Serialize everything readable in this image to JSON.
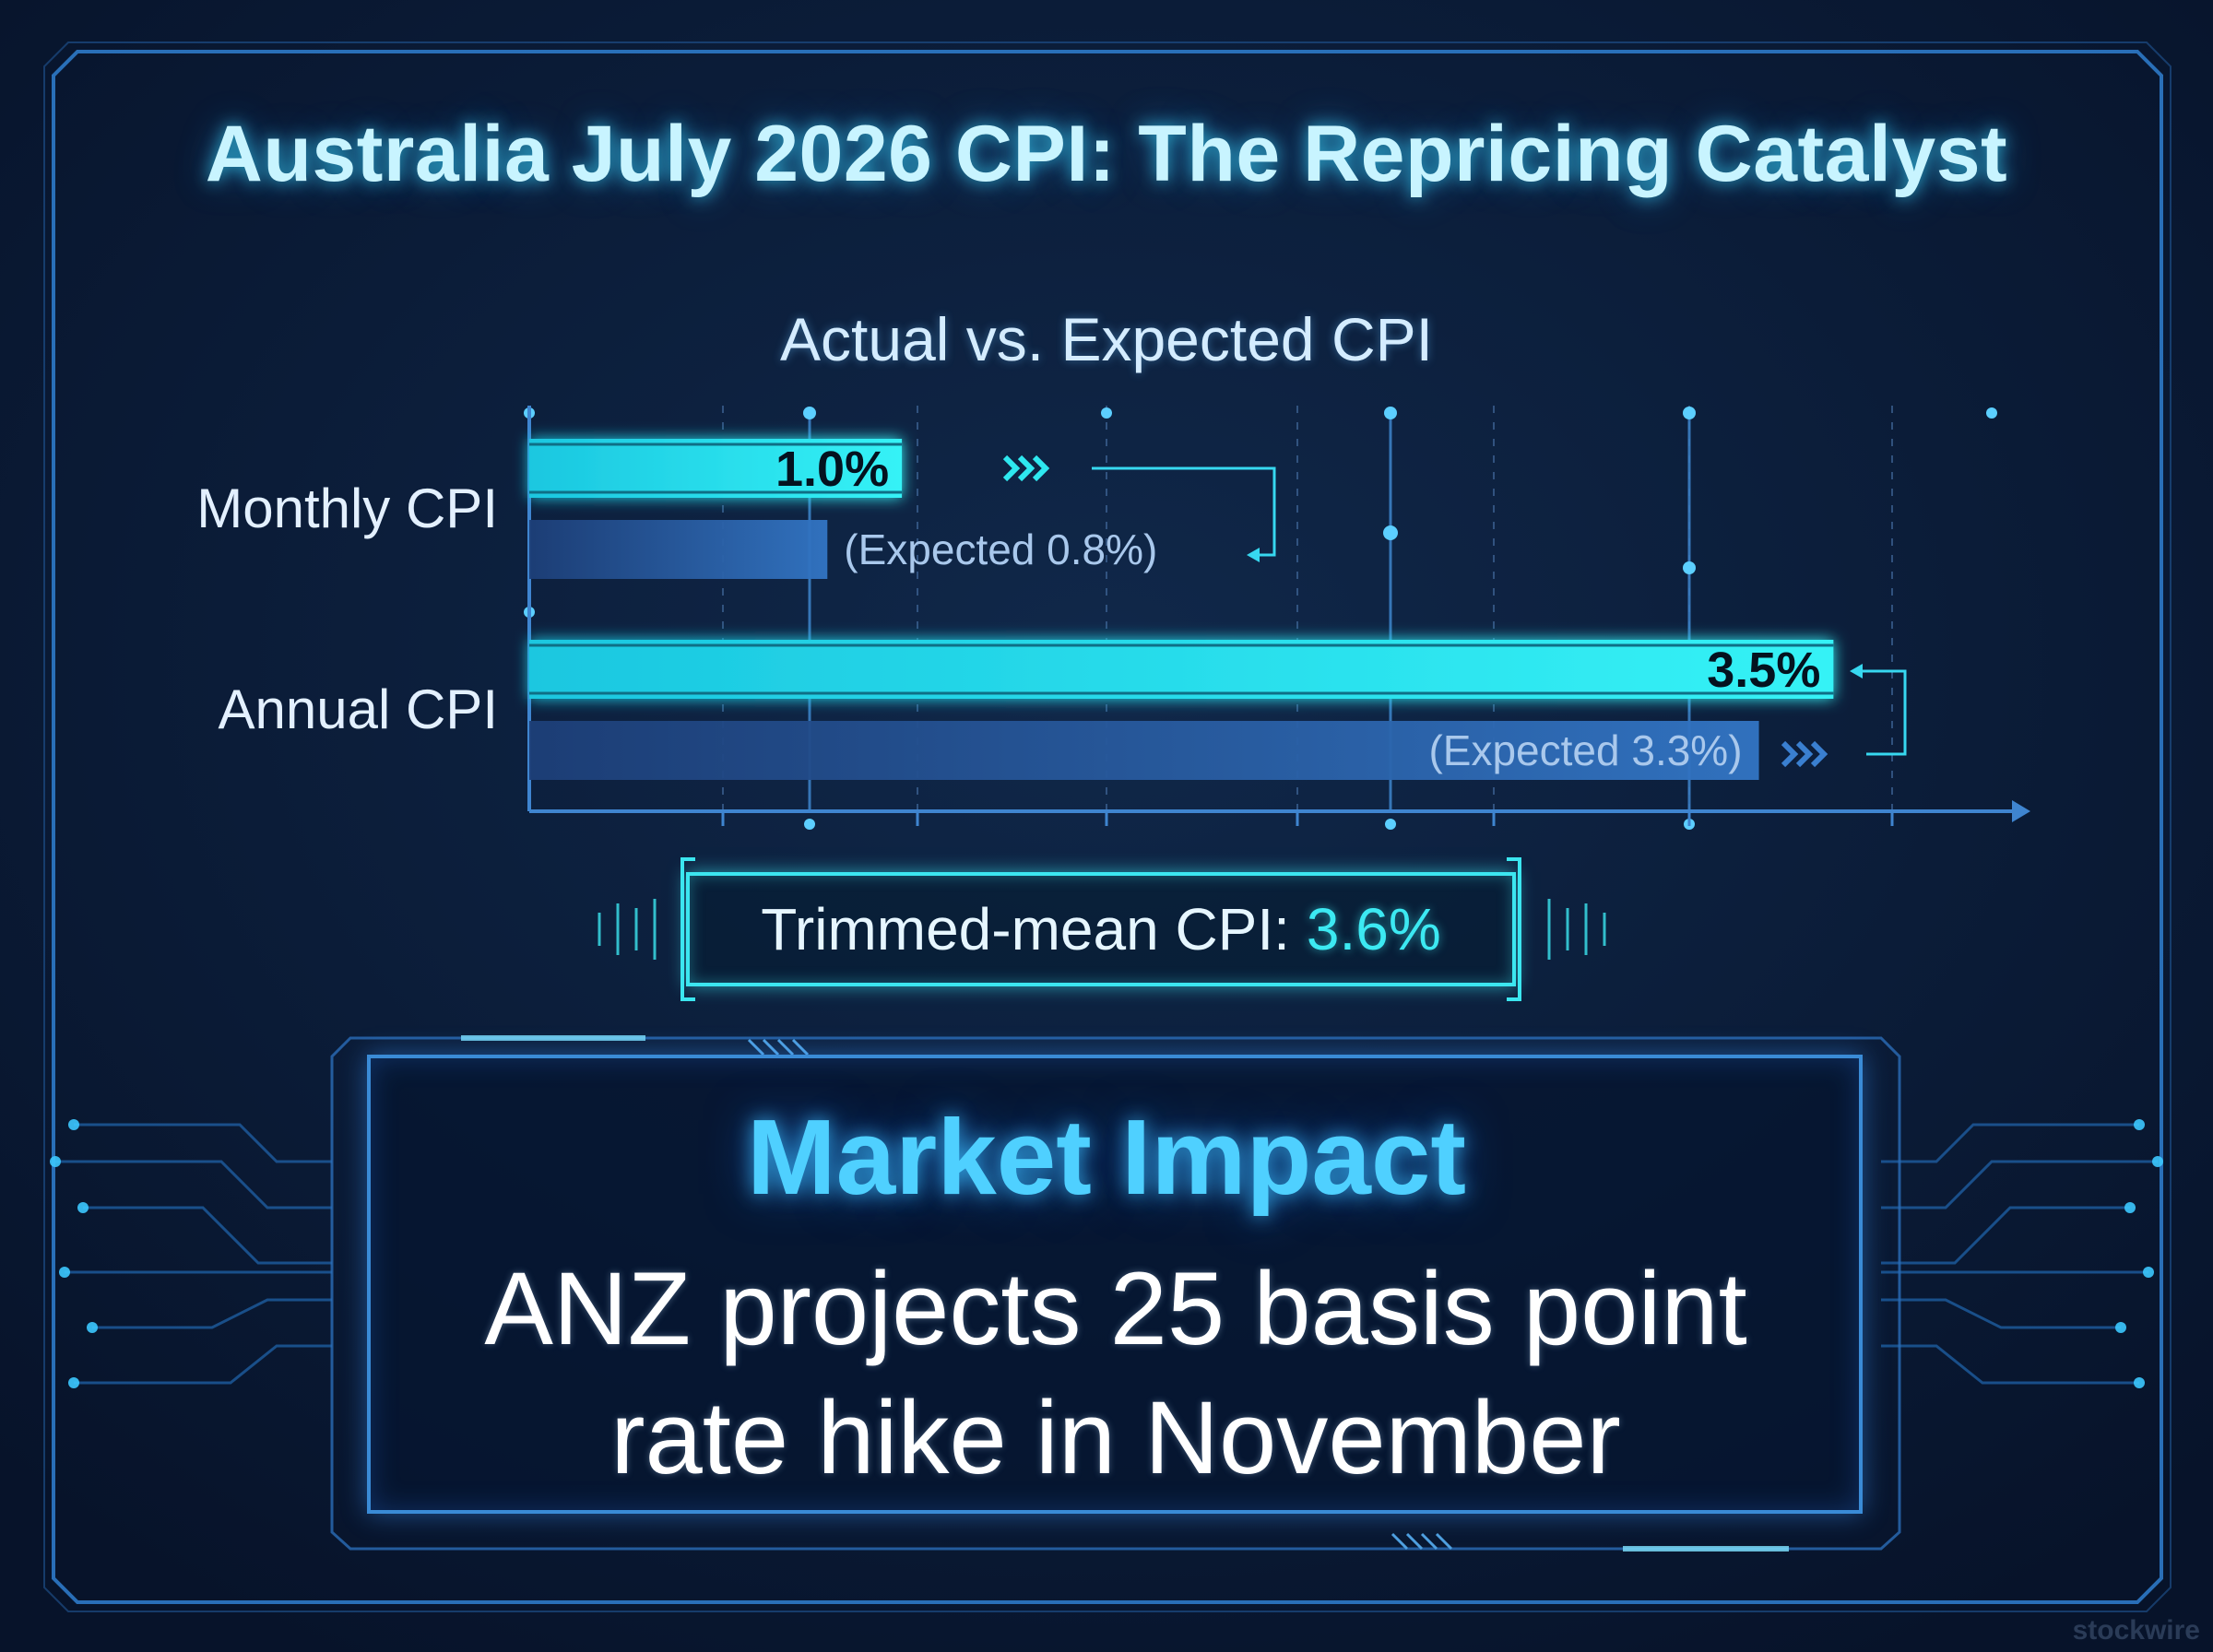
{
  "header": {
    "title": "Australia July 2026 CPI: The Repricing Catalyst"
  },
  "chart_data": {
    "type": "bar",
    "orientation": "horizontal",
    "title": "Actual vs. Expected CPI",
    "categories": [
      "Monthly CPI",
      "Annual CPI"
    ],
    "series": [
      {
        "values": [
          1.0,
          3.5
        ],
        "labels": [
          "1.0%",
          "3.5%"
        ],
        "color": "#2ee8f0"
      },
      {
        "values": [
          0.8,
          3.3
        ],
        "labels": [
          "(Expected 0.8%)",
          "(Expected 3.3%)"
        ],
        "color": "#2f6fbf"
      }
    ],
    "value_unit": "%",
    "xlim": [
      0,
      3.9
    ],
    "grid": "vertical dashed"
  },
  "trimmed_mean": {
    "label": "Trimmed-mean CPI:",
    "value": "3.6%"
  },
  "impact": {
    "heading": "Market Impact",
    "text": "ANZ projects 25 basis point rate hike in November"
  },
  "watermark": "stockwire",
  "colors": {
    "background": "#0b1a33",
    "accent_cyan": "#2ee8f0",
    "accent_blue": "#3a8bd6",
    "expected_bar": "#2f6fbf"
  }
}
